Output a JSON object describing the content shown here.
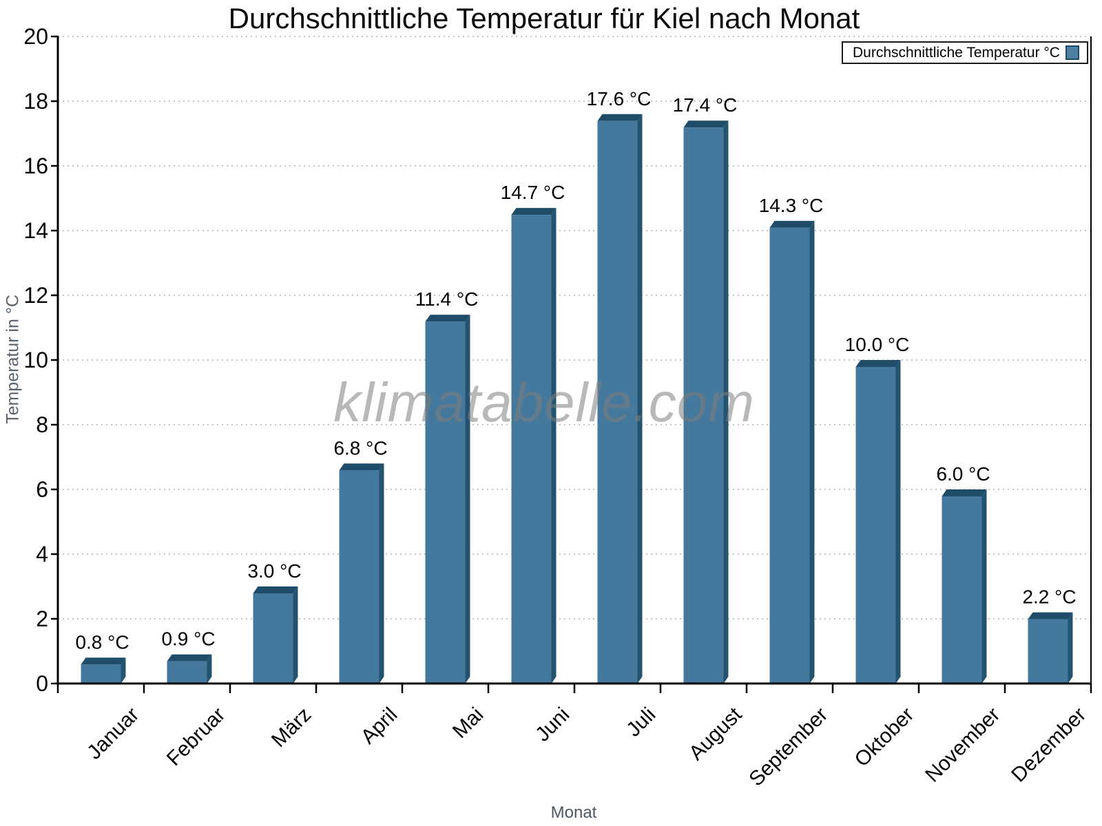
{
  "chart_data": {
    "type": "bar",
    "title": "Durchschnittliche Temperatur für Kiel nach Monat",
    "xlabel": "Monat",
    "ylabel": "Temperatur in °C",
    "categories": [
      "Januar",
      "Februar",
      "März",
      "April",
      "Mai",
      "Juni",
      "Juli",
      "August",
      "September",
      "Oktober",
      "November",
      "Dezember"
    ],
    "values": [
      0.8,
      0.9,
      3.0,
      6.8,
      11.4,
      14.7,
      17.6,
      17.4,
      14.3,
      10.0,
      6.0,
      2.2
    ],
    "value_labels": [
      "0.8 °C",
      "0.9 °C",
      "3.0 °C",
      "6.8 °C",
      "11.4 °C",
      "14.7 °C",
      "17.6 °C",
      "17.4 °C",
      "14.3 °C",
      "10.0 °C",
      "6.0 °C",
      "2.2 °C"
    ],
    "ylim": [
      0,
      20
    ],
    "yticks": [
      0,
      2,
      4,
      6,
      8,
      10,
      12,
      14,
      16,
      18,
      20
    ],
    "grid": "horizontal-dotted",
    "bar_style": "3d",
    "legend": {
      "label": "Durchschnittliche Temperatur °C",
      "position": "top-right"
    },
    "watermark": "klimatabelle.com",
    "colors": {
      "bar_face": "#44789c",
      "bar_top": "#1f4c68",
      "bar_side": "#24536f",
      "grid": "#c3c3c3",
      "axis": "#000000",
      "tick_text": "#000000",
      "axis_title_text": "#59636e",
      "legend_border": "#1a1a1a",
      "background": "#ffffff"
    }
  }
}
